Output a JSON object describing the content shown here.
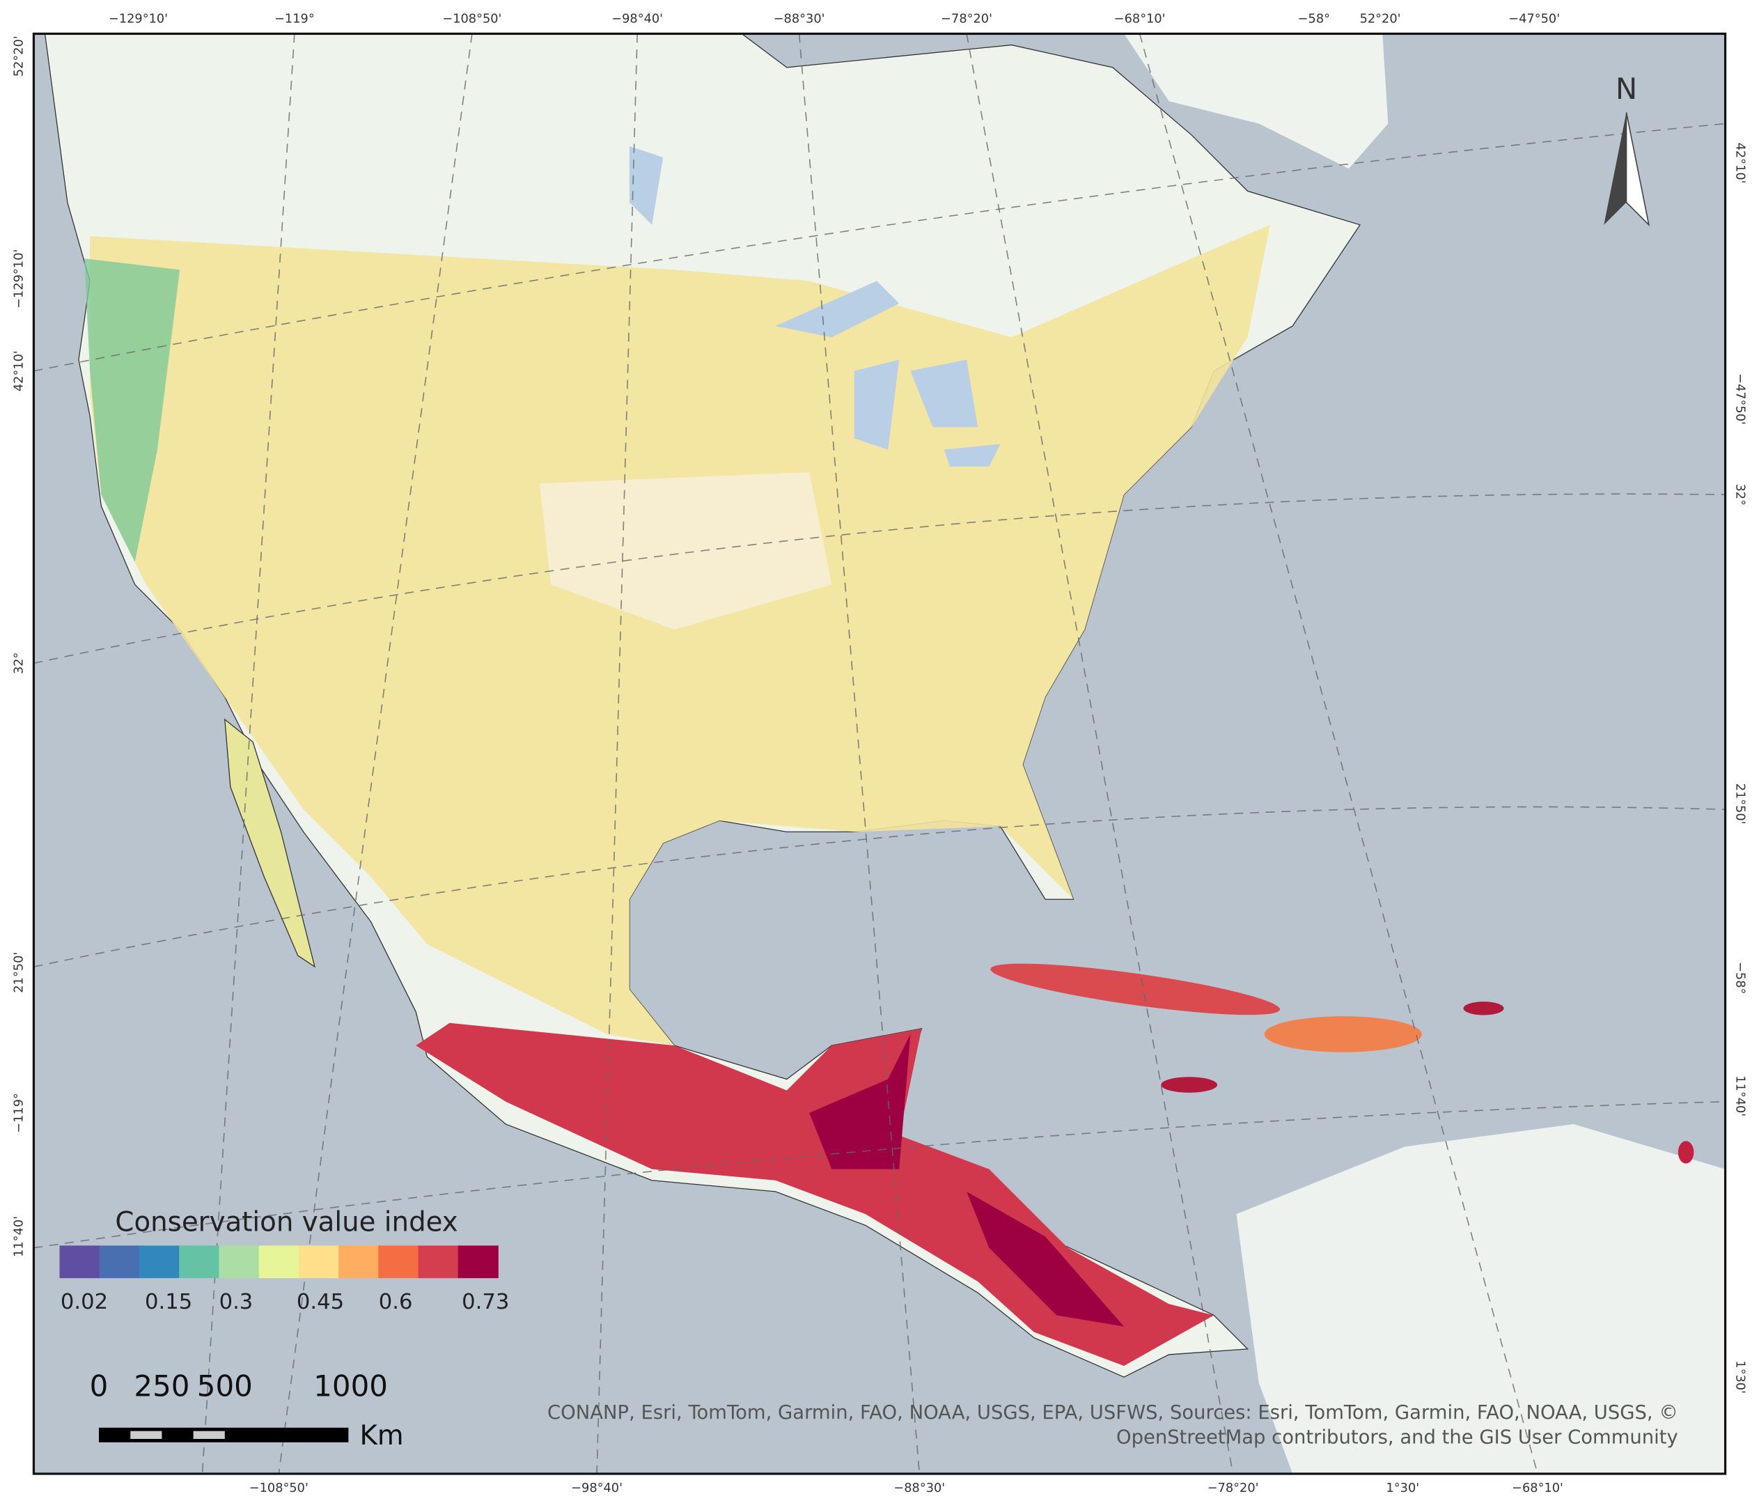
{
  "graticule": {
    "top": [
      "−129°10'",
      "−119°",
      "−108°50'",
      "−98°40'",
      "−88°30'",
      "−78°20'",
      "−68°10'",
      "−58°",
      "52°20'",
      "−47°50'"
    ],
    "bottom": [
      "−108°50'",
      "−98°40'",
      "−88°30'",
      "−78°20'",
      "1°30'",
      "−68°10'"
    ],
    "left": [
      "52°20'",
      "−129°10'",
      "42°10'",
      "32°",
      "21°50'",
      "−119°",
      "11°40'"
    ],
    "right": [
      "42°10'",
      "−47°50'",
      "32°",
      "21°50'",
      "−58°",
      "11°40'",
      "1°30'"
    ]
  },
  "north_arrow": "N",
  "legend": {
    "title": "Conservation value index",
    "colors": [
      "#5e4fa2",
      "#4a6fb0",
      "#3288bd",
      "#66c2a5",
      "#abdda4",
      "#e6f598",
      "#fee08b",
      "#fdae61",
      "#f46d43",
      "#d53e4f",
      "#9e0142"
    ],
    "ticks": [
      0.02,
      0.15,
      0.3,
      0.45,
      0.6,
      0.73
    ]
  },
  "scale_bar": {
    "ticks": [
      0,
      250,
      500,
      1000
    ],
    "unit": "Km"
  },
  "attribution": [
    "CONANP, Esri, TomTom, Garmin, FAO, NOAA, USGS, EPA, USFWS, Sources: Esri, TomTom, Garmin, FAO, NOAA, USGS, ©",
    "OpenStreetMap contributors, and the GIS User Community"
  ]
}
